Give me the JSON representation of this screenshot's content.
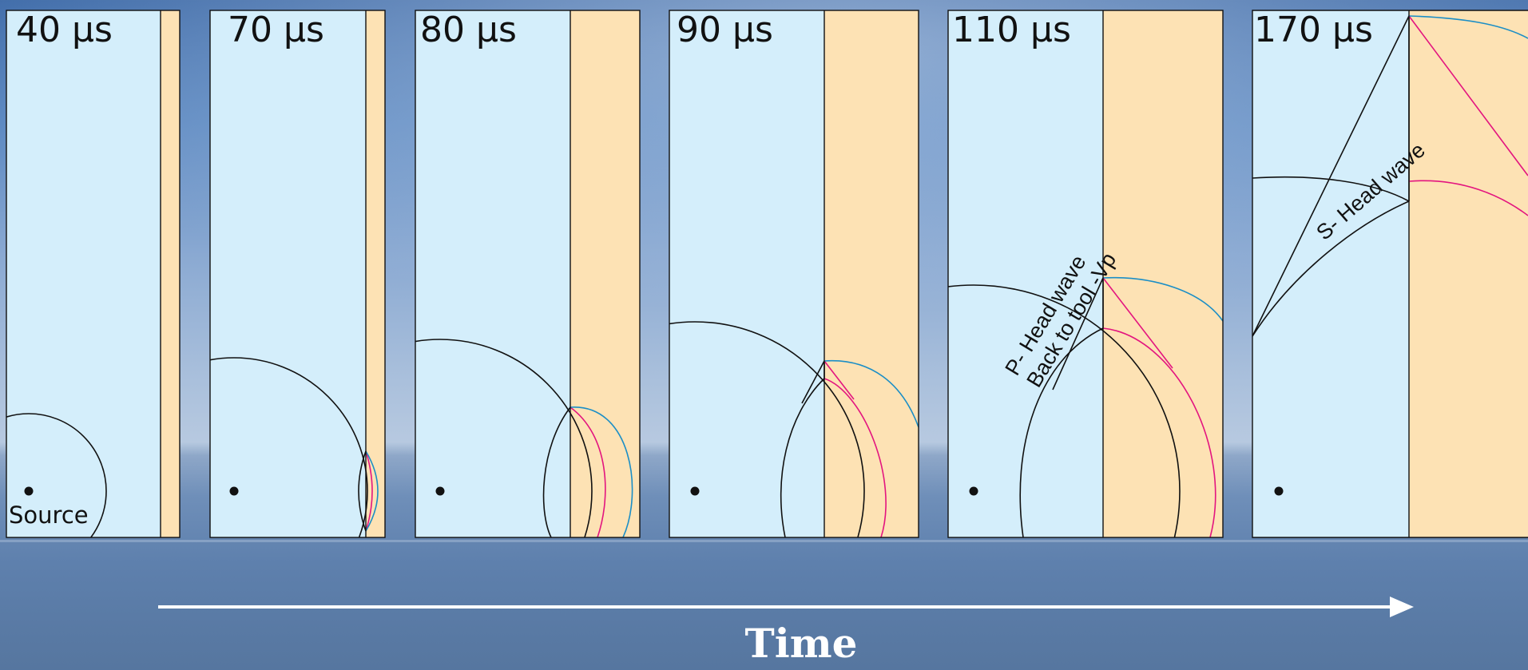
{
  "panels": [
    {
      "time": "40 µs"
    },
    {
      "time": "70 µs"
    },
    {
      "time": "80 µs"
    },
    {
      "time": "90 µs"
    },
    {
      "time": "110 µs"
    },
    {
      "time": "170 µs"
    }
  ],
  "labels": {
    "source": "Source",
    "p_head_wave": "P- Head wave",
    "back_to_tool": "Back to tool -Vp",
    "s_head_wave": "S- Head wave"
  },
  "axis": {
    "time": "Time"
  },
  "colors": {
    "fluid": "#d4eefb",
    "formation": "#fde2b4",
    "compressional_wave": "#e3157f",
    "shear_wave": "#1b8ec6",
    "outline": "#111111",
    "arrow": "#ffffff"
  }
}
